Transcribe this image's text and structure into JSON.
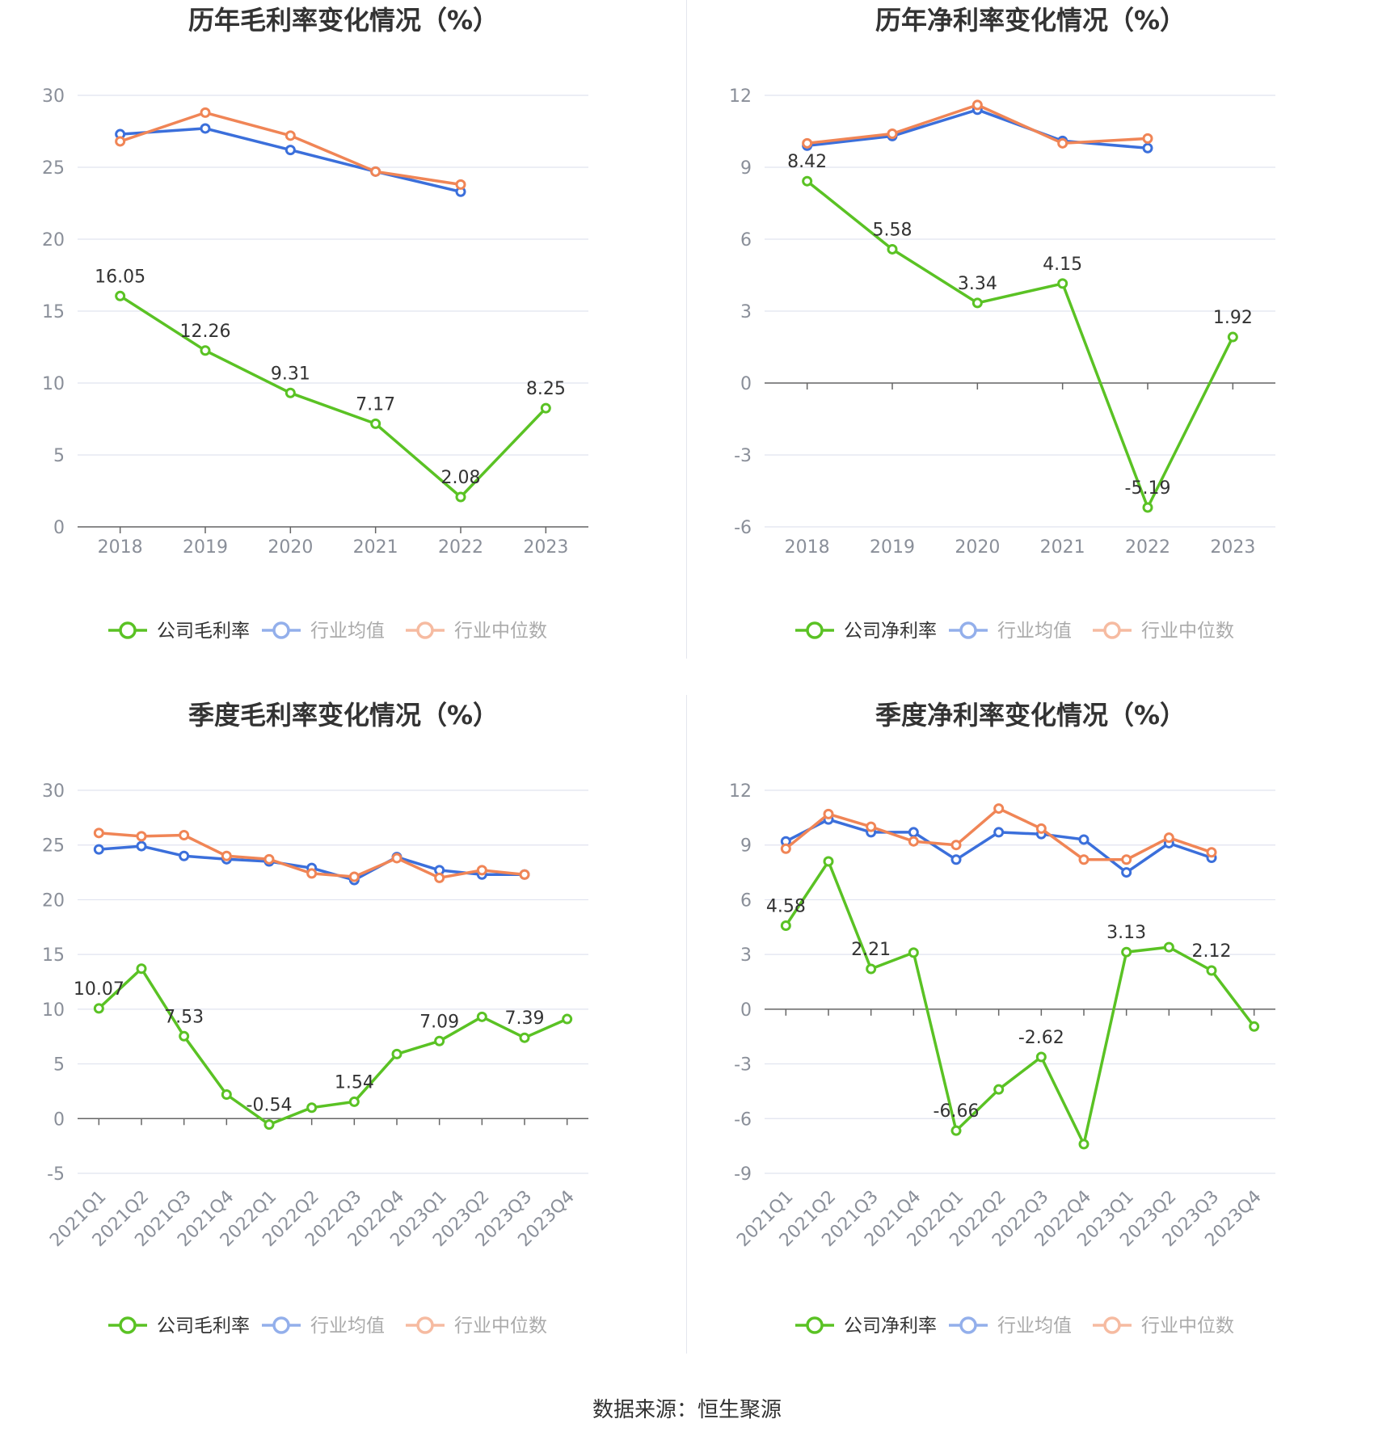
{
  "colors": {
    "company": "#5ac224",
    "avg": "#3b6fdb",
    "median": "#f08556",
    "grid": "#e0e3ef",
    "axis": "#666666",
    "tick_text": "#8a8f99",
    "title": "#333333",
    "label": "#333333"
  },
  "source": {
    "label": "数据来源：",
    "name": "恒生聚源"
  },
  "charts": [
    {
      "id": "annual-gross",
      "title": "历年毛利率变化情况（%）",
      "legend": [
        "公司毛利率",
        "行业均值",
        "行业中位数"
      ],
      "chart_data": {
        "type": "line",
        "title": "历年毛利率变化情况（%）",
        "categories": [
          "2018",
          "2019",
          "2020",
          "2021",
          "2022",
          "2023"
        ],
        "ylim": [
          0,
          30
        ],
        "yticks": [
          0,
          5,
          10,
          15,
          20,
          25,
          30
        ],
        "rotate_labels": false,
        "series": [
          {
            "name": "公司毛利率",
            "role": "company",
            "values": [
              16.05,
              12.26,
              9.31,
              7.17,
              2.08,
              8.25
            ],
            "labels": [
              "16.05",
              "12.26",
              "9.31",
              "7.17",
              "2.08",
              "8.25"
            ]
          },
          {
            "name": "行业均值",
            "role": "avg",
            "values": [
              27.3,
              27.7,
              26.2,
              24.7,
              23.3,
              null
            ]
          },
          {
            "name": "行业中位数",
            "role": "median",
            "values": [
              26.8,
              28.8,
              27.2,
              24.7,
              23.8,
              null
            ]
          }
        ]
      }
    },
    {
      "id": "annual-net",
      "title": "历年净利率变化情况（%）",
      "legend": [
        "公司净利率",
        "行业均值",
        "行业中位数"
      ],
      "chart_data": {
        "type": "line",
        "title": "历年净利率变化情况（%）",
        "categories": [
          "2018",
          "2019",
          "2020",
          "2021",
          "2022",
          "2023"
        ],
        "ylim": [
          -6,
          12
        ],
        "yticks": [
          -6,
          -3,
          0,
          3,
          6,
          9,
          12
        ],
        "rotate_labels": false,
        "series": [
          {
            "name": "公司净利率",
            "role": "company",
            "values": [
              8.42,
              5.58,
              3.34,
              4.15,
              -5.19,
              1.92
            ],
            "labels": [
              "8.42",
              "5.58",
              "3.34",
              "4.15",
              "-5.19",
              "1.92"
            ]
          },
          {
            "name": "行业均值",
            "role": "avg",
            "values": [
              9.9,
              10.3,
              11.4,
              10.1,
              9.8,
              null
            ]
          },
          {
            "name": "行业中位数",
            "role": "median",
            "values": [
              10.0,
              10.4,
              11.6,
              10.0,
              10.2,
              null
            ]
          }
        ]
      }
    },
    {
      "id": "quarterly-gross",
      "title": "季度毛利率变化情况（%）",
      "legend": [
        "公司毛利率",
        "行业均值",
        "行业中位数"
      ],
      "chart_data": {
        "type": "line",
        "title": "季度毛利率变化情况（%）",
        "categories": [
          "2021Q1",
          "2021Q2",
          "2021Q3",
          "2021Q4",
          "2022Q1",
          "2022Q2",
          "2022Q3",
          "2022Q4",
          "2023Q1",
          "2023Q2",
          "2023Q3",
          "2023Q4"
        ],
        "ylim": [
          -5,
          30
        ],
        "yticks": [
          -5,
          0,
          5,
          10,
          15,
          20,
          25,
          30
        ],
        "rotate_labels": true,
        "series": [
          {
            "name": "公司毛利率",
            "role": "company",
            "values": [
              10.07,
              13.7,
              7.53,
              2.2,
              -0.54,
              1.0,
              1.54,
              5.9,
              7.09,
              9.3,
              7.39,
              9.1
            ],
            "labels": [
              "10.07",
              "",
              "7.53",
              "",
              "-0.54",
              "",
              "1.54",
              "",
              "7.09",
              "",
              "7.39",
              ""
            ]
          },
          {
            "name": "行业均值",
            "role": "avg",
            "values": [
              24.6,
              24.9,
              24.0,
              23.7,
              23.5,
              22.9,
              21.8,
              23.9,
              22.7,
              22.3,
              22.3,
              null
            ]
          },
          {
            "name": "行业中位数",
            "role": "median",
            "values": [
              26.1,
              25.8,
              25.9,
              24.0,
              23.7,
              22.4,
              22.1,
              23.8,
              22.0,
              22.7,
              22.3,
              null
            ]
          }
        ]
      }
    },
    {
      "id": "quarterly-net",
      "title": "季度净利率变化情况（%）",
      "legend": [
        "公司净利率",
        "行业均值",
        "行业中位数"
      ],
      "chart_data": {
        "type": "line",
        "title": "季度净利率变化情况（%）",
        "categories": [
          "2021Q1",
          "2021Q2",
          "2021Q3",
          "2021Q4",
          "2022Q1",
          "2022Q2",
          "2022Q3",
          "2022Q4",
          "2023Q1",
          "2023Q2",
          "2023Q3",
          "2023Q4"
        ],
        "ylim": [
          -9,
          12
        ],
        "yticks": [
          -9,
          -6,
          -3,
          0,
          3,
          6,
          9,
          12
        ],
        "rotate_labels": true,
        "series": [
          {
            "name": "公司净利率",
            "role": "company",
            "values": [
              4.58,
              8.1,
              2.21,
              3.1,
              -6.66,
              -4.4,
              -2.62,
              -7.4,
              3.13,
              3.4,
              2.12,
              -0.95
            ],
            "labels": [
              "4.58",
              "",
              "2.21",
              "",
              "-6.66",
              "",
              "-2.62",
              "",
              "3.13",
              "",
              "2.12",
              ""
            ]
          },
          {
            "name": "行业均值",
            "role": "avg",
            "values": [
              9.2,
              10.4,
              9.7,
              9.7,
              8.2,
              9.7,
              9.6,
              9.3,
              7.5,
              9.1,
              8.3,
              null
            ]
          },
          {
            "name": "行业中位数",
            "role": "median",
            "values": [
              8.8,
              10.7,
              10.0,
              9.2,
              9.0,
              11.0,
              9.9,
              8.2,
              8.2,
              9.4,
              8.6,
              null
            ]
          }
        ]
      }
    }
  ]
}
